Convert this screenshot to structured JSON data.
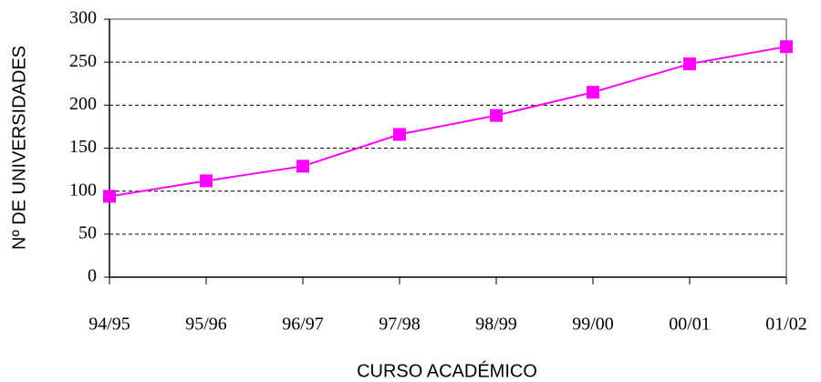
{
  "chart_data": {
    "type": "line",
    "x_label": "CURSO ACADÉMICO",
    "y_label": "Nº DE UNIVERSIDADES",
    "categories": [
      "94/95",
      "95/96",
      "96/97",
      "97/98",
      "98/99",
      "99/00",
      "00/01",
      "01/02"
    ],
    "series": [
      {
        "color": "#ff00ff",
        "values": [
          94,
          112,
          129,
          166,
          188,
          215,
          248,
          268
        ]
      }
    ],
    "ylim": [
      0,
      300
    ],
    "yticks": [
      0,
      50,
      100,
      150,
      200,
      250,
      300
    ],
    "grid": true
  }
}
